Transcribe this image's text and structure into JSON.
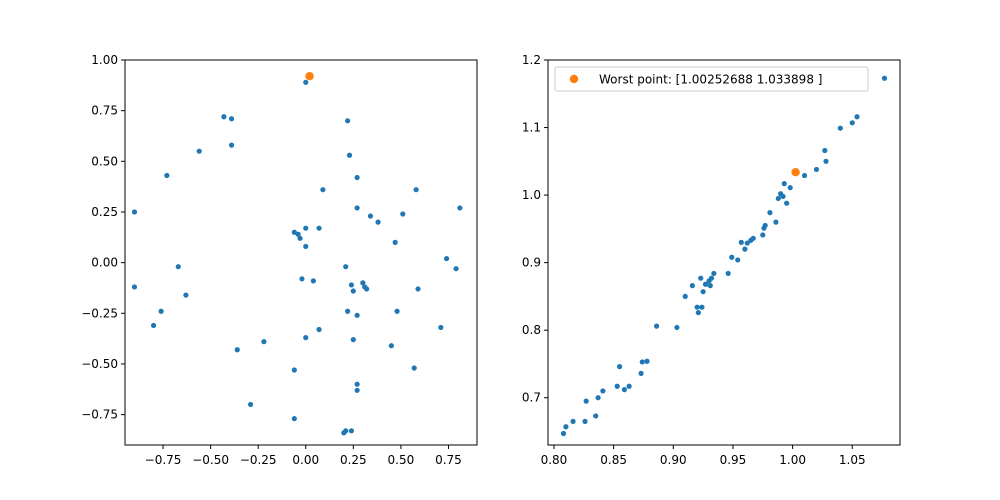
{
  "chart_data": [
    {
      "type": "scatter",
      "xlim": [
        -0.95,
        0.9
      ],
      "ylim": [
        -0.9,
        1.0
      ],
      "xticks": [
        -0.75,
        -0.5,
        -0.25,
        0.0,
        0.25,
        0.5,
        0.75
      ],
      "xtick_labels": [
        "−0.75",
        "−0.50",
        "−0.25",
        "0.00",
        "0.25",
        "0.50",
        "0.75"
      ],
      "yticks": [
        -0.75,
        -0.5,
        -0.25,
        0.0,
        0.25,
        0.5,
        0.75,
        1.0
      ],
      "ytick_labels": [
        "−0.75",
        "−0.50",
        "−0.25",
        "0.00",
        "0.25",
        "0.50",
        "0.75",
        "1.00"
      ],
      "grid": false,
      "series": [
        {
          "color": "#1f77b4",
          "points": [
            [
              0.0,
              0.89
            ],
            [
              0.22,
              0.7
            ],
            [
              -0.43,
              0.72
            ],
            [
              -0.39,
              0.71
            ],
            [
              -0.39,
              0.58
            ],
            [
              -0.56,
              0.55
            ],
            [
              -0.73,
              0.43
            ],
            [
              0.23,
              0.53
            ],
            [
              0.27,
              0.42
            ],
            [
              0.09,
              0.36
            ],
            [
              0.58,
              0.36
            ],
            [
              -0.9,
              0.25
            ],
            [
              0.27,
              0.27
            ],
            [
              0.34,
              0.23
            ],
            [
              0.51,
              0.24
            ],
            [
              0.38,
              0.2
            ],
            [
              0.81,
              0.27
            ],
            [
              -0.06,
              0.15
            ],
            [
              -0.04,
              0.14
            ],
            [
              -0.03,
              0.12
            ],
            [
              0.0,
              0.17
            ],
            [
              0.07,
              0.17
            ],
            [
              0.47,
              0.1
            ],
            [
              0.0,
              0.08
            ],
            [
              0.74,
              0.02
            ],
            [
              -0.67,
              -0.02
            ],
            [
              0.21,
              -0.02
            ],
            [
              0.79,
              -0.03
            ],
            [
              -0.02,
              -0.08
            ],
            [
              0.04,
              -0.09
            ],
            [
              -0.9,
              -0.12
            ],
            [
              0.24,
              -0.11
            ],
            [
              0.3,
              -0.1
            ],
            [
              0.31,
              -0.12
            ],
            [
              0.32,
              -0.13
            ],
            [
              0.25,
              -0.14
            ],
            [
              0.59,
              -0.13
            ],
            [
              -0.63,
              -0.16
            ],
            [
              -0.76,
              -0.24
            ],
            [
              0.22,
              -0.24
            ],
            [
              0.27,
              -0.26
            ],
            [
              0.48,
              -0.24
            ],
            [
              -0.8,
              -0.31
            ],
            [
              0.07,
              -0.33
            ],
            [
              0.71,
              -0.32
            ],
            [
              0.0,
              -0.37
            ],
            [
              0.25,
              -0.38
            ],
            [
              -0.22,
              -0.39
            ],
            [
              -0.36,
              -0.43
            ],
            [
              0.45,
              -0.41
            ],
            [
              -0.06,
              -0.53
            ],
            [
              0.57,
              -0.52
            ],
            [
              0.27,
              -0.6
            ],
            [
              0.27,
              -0.63
            ],
            [
              -0.29,
              -0.7
            ],
            [
              -0.06,
              -0.77
            ],
            [
              0.2,
              -0.84
            ],
            [
              0.21,
              -0.83
            ],
            [
              0.24,
              -0.83
            ]
          ]
        },
        {
          "color": "#ff7f0e",
          "points": [
            [
              0.02,
              0.92
            ]
          ]
        }
      ]
    },
    {
      "type": "scatter",
      "xlim": [
        0.795,
        1.09
      ],
      "ylim": [
        0.63,
        1.2
      ],
      "xticks": [
        0.8,
        0.85,
        0.9,
        0.95,
        1.0,
        1.05
      ],
      "xtick_labels": [
        "0.80",
        "0.85",
        "0.90",
        "0.95",
        "1.00",
        "1.05"
      ],
      "yticks": [
        0.7,
        0.8,
        0.9,
        1.0,
        1.1,
        1.2
      ],
      "ytick_labels": [
        "0.7",
        "0.8",
        "0.9",
        "1.0",
        "1.1",
        "1.2"
      ],
      "grid": false,
      "legend_location": "upper left",
      "legend_entries": [
        "Worst point: [1.00252688 1.033898  ]"
      ],
      "series": [
        {
          "color": "#1f77b4",
          "points": [
            [
              0.808,
              0.647
            ],
            [
              0.81,
              0.657
            ],
            [
              0.816,
              0.665
            ],
            [
              0.826,
              0.665
            ],
            [
              0.827,
              0.695
            ],
            [
              0.835,
              0.673
            ],
            [
              0.837,
              0.7
            ],
            [
              0.841,
              0.71
            ],
            [
              0.853,
              0.717
            ],
            [
              0.855,
              0.746
            ],
            [
              0.859,
              0.712
            ],
            [
              0.863,
              0.717
            ],
            [
              0.873,
              0.736
            ],
            [
              0.874,
              0.753
            ],
            [
              0.878,
              0.754
            ],
            [
              0.886,
              0.806
            ],
            [
              0.903,
              0.804
            ],
            [
              0.91,
              0.85
            ],
            [
              0.916,
              0.866
            ],
            [
              0.92,
              0.834
            ],
            [
              0.921,
              0.826
            ],
            [
              0.923,
              0.877
            ],
            [
              0.924,
              0.834
            ],
            [
              0.925,
              0.857
            ],
            [
              0.927,
              0.868
            ],
            [
              0.93,
              0.873
            ],
            [
              0.931,
              0.866
            ],
            [
              0.932,
              0.877
            ],
            [
              0.934,
              0.884
            ],
            [
              0.946,
              0.884
            ],
            [
              0.949,
              0.908
            ],
            [
              0.954,
              0.904
            ],
            [
              0.957,
              0.93
            ],
            [
              0.96,
              0.92
            ],
            [
              0.962,
              0.929
            ],
            [
              0.965,
              0.933
            ],
            [
              0.967,
              0.936
            ],
            [
              0.975,
              0.941
            ],
            [
              0.976,
              0.951
            ],
            [
              0.977,
              0.955
            ],
            [
              0.981,
              0.974
            ],
            [
              0.986,
              0.96
            ],
            [
              0.988,
              0.995
            ],
            [
              0.99,
              1.002
            ],
            [
              0.992,
              0.998
            ],
            [
              0.993,
              1.017
            ],
            [
              0.995,
              0.988
            ],
            [
              0.998,
              1.011
            ],
            [
              1.01,
              1.029
            ],
            [
              1.02,
              1.038
            ],
            [
              1.027,
              1.066
            ],
            [
              1.028,
              1.05
            ],
            [
              1.04,
              1.099
            ],
            [
              1.05,
              1.107
            ],
            [
              1.054,
              1.116
            ],
            [
              1.077,
              1.173
            ]
          ]
        },
        {
          "color": "#ff7f0e",
          "points": [
            [
              1.00252688,
              1.033898
            ]
          ]
        }
      ]
    }
  ]
}
